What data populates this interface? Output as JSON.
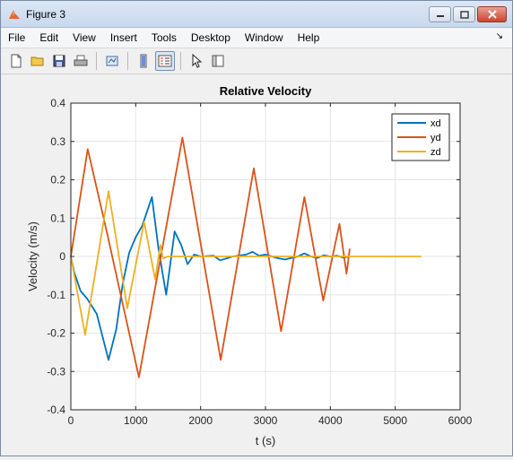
{
  "window": {
    "title": "Figure 3"
  },
  "menu": [
    "File",
    "Edit",
    "View",
    "Insert",
    "Tools",
    "Desktop",
    "Window",
    "Help"
  ],
  "toolbar": {
    "icons": [
      "new-figure-icon",
      "open-file-icon",
      "save-icon",
      "print-icon",
      "link-plot-icon",
      "colorbar-icon",
      "legend-icon",
      "pointer-icon",
      "property-editor-icon"
    ]
  },
  "chart_data": {
    "type": "line",
    "title": "Relative Velocity",
    "xlabel": "t (s)",
    "ylabel": "Velocity (m/s)",
    "xlim": [
      0,
      6000
    ],
    "ylim": [
      -0.4,
      0.4
    ],
    "xticks": [
      0,
      1000,
      2000,
      3000,
      4000,
      5000,
      6000
    ],
    "yticks": [
      -0.4,
      -0.3,
      -0.2,
      -0.1,
      0,
      0.1,
      0.2,
      0.3,
      0.4
    ],
    "xtick_labels": [
      "0",
      "1000",
      "2000",
      "3000",
      "4000",
      "5000",
      "6000"
    ],
    "ytick_labels": [
      "-0.4",
      "-0.3",
      "-0.2",
      "-0.1",
      "0",
      "0.1",
      "0.2",
      "0.3",
      "0.4"
    ],
    "grid": true,
    "legend_position": "top-right",
    "series": [
      {
        "name": "xd",
        "color": "#0072bd",
        "x": [
          0,
          50,
          150,
          250,
          400,
          580,
          700,
          800,
          900,
          1000,
          1100,
          1250,
          1350,
          1470,
          1600,
          1700,
          1800,
          1900,
          2000,
          2200,
          2300,
          2500,
          2700,
          2800,
          2900,
          3000,
          3200,
          3300,
          3500,
          3600,
          3700,
          3800,
          3900,
          4000,
          4100,
          4200,
          4300
        ],
        "y": [
          0,
          -0.04,
          -0.09,
          -0.11,
          -0.15,
          -0.27,
          -0.19,
          -0.07,
          0.01,
          0.05,
          0.08,
          0.155,
          0.02,
          -0.1,
          0.065,
          0.03,
          -0.02,
          0.005,
          0.0,
          0.002,
          -0.01,
          0.0,
          0.005,
          0.012,
          0.002,
          0.005,
          -0.005,
          -0.008,
          0.0,
          0.008,
          0.0,
          -0.004,
          0.003,
          0.0,
          0.002,
          -0.003,
          0.0
        ]
      },
      {
        "name": "yd",
        "color": "#d95319",
        "x": [
          0,
          260,
          560,
          1050,
          1720,
          2310,
          2820,
          3240,
          3600,
          3890,
          4140,
          4250,
          4300
        ],
        "y": [
          0,
          0.28,
          0.06,
          -0.315,
          0.31,
          -0.27,
          0.23,
          -0.195,
          0.155,
          -0.115,
          0.085,
          -0.045,
          0.02
        ]
      },
      {
        "name": "zd",
        "color": "#edb120",
        "x": [
          0,
          220,
          580,
          870,
          1130,
          1300,
          1380,
          1420,
          1500,
          2000,
          3000,
          4000,
          5000,
          5400
        ],
        "y": [
          0,
          -0.205,
          0.17,
          -0.135,
          0.09,
          -0.06,
          0.03,
          -0.005,
          0.0,
          0.0,
          0.0,
          0.0,
          0.0,
          0.0
        ]
      }
    ]
  }
}
